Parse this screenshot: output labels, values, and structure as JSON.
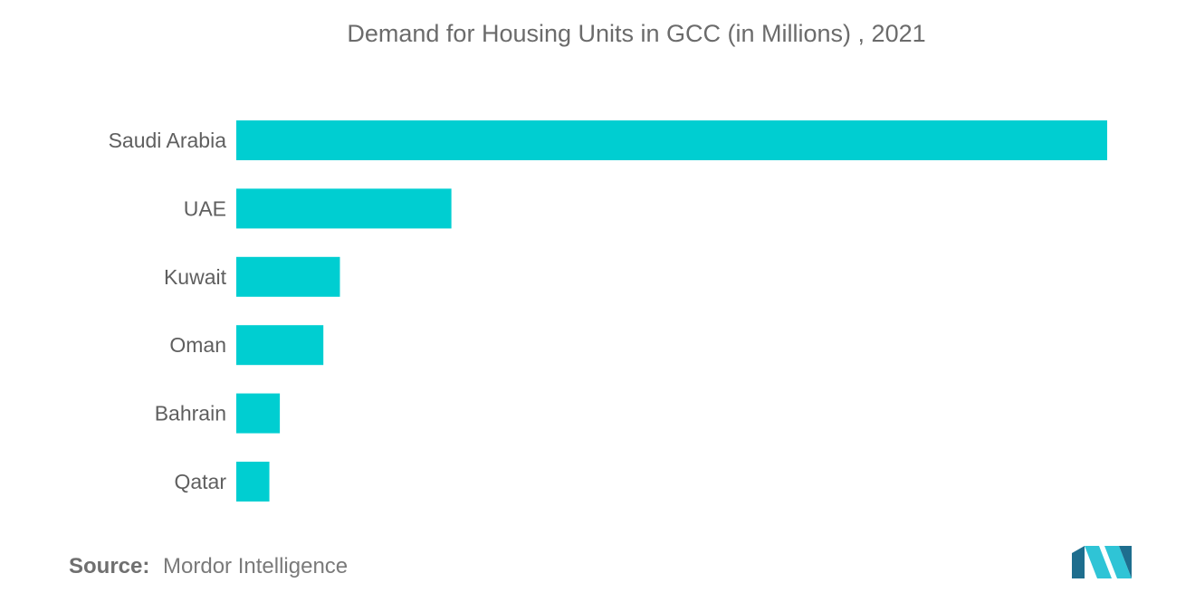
{
  "chart_data": {
    "type": "bar",
    "orientation": "horizontal",
    "title": "Demand for Housing Units in GCC (in Millions) , 2021",
    "categories": [
      "Saudi Arabia",
      "UAE",
      "Kuwait",
      "Oman",
      "Bahrain",
      "Qatar"
    ],
    "values": [
      1.0,
      0.247,
      0.119,
      0.1,
      0.05,
      0.038
    ],
    "xlim": [
      0,
      1.0
    ],
    "grid": false,
    "legend": "none",
    "bar_color": "#00CED1"
  },
  "footer": {
    "source_label": "Source:",
    "source_text": "Mordor Intelligence"
  },
  "logo": {
    "icon": "mordor-intelligence-logo",
    "color_light": "#2FC4D6",
    "color_dark": "#1E6E8E"
  }
}
